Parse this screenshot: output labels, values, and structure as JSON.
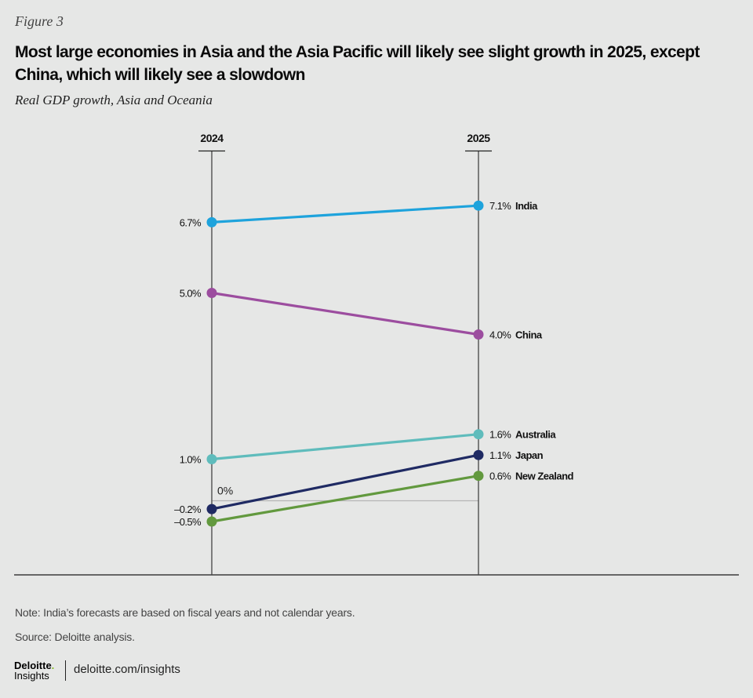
{
  "header": {
    "figure_label": "Figure 3",
    "title": "Most large economies in Asia and the Asia Pacific will likely see slight growth in 2025, except China, which will likely see a slowdown",
    "subtitle": "Real GDP growth, Asia and Oceania"
  },
  "chart_data": {
    "type": "line",
    "subtype": "slope",
    "title": "Most large economies in Asia and the Asia Pacific will likely see slight growth in 2025, except China, which will likely see a slowdown",
    "subtitle": "Real GDP growth, Asia and Oceania",
    "x": [
      "2024",
      "2025"
    ],
    "unit": "%",
    "zero_label": "0%",
    "ylim": [
      -1.8,
      8.4
    ],
    "grid": false,
    "series": [
      {
        "name": "India",
        "values": [
          6.7,
          7.1
        ],
        "labels": [
          "6.7%",
          "7.1%"
        ],
        "color": "#1ea3dc"
      },
      {
        "name": "China",
        "values": [
          5.0,
          4.0
        ],
        "labels": [
          "5.0%",
          "4.0%"
        ],
        "color": "#9c4d9f"
      },
      {
        "name": "Australia",
        "values": [
          1.0,
          1.6
        ],
        "labels": [
          "1.0%",
          "1.6%"
        ],
        "color": "#5fbcbc"
      },
      {
        "name": "Japan",
        "values": [
          -0.2,
          1.1
        ],
        "labels": [
          "–0.2%",
          "1.1%"
        ],
        "color": "#1f2a63"
      },
      {
        "name": "New Zealand",
        "values": [
          -0.5,
          0.6
        ],
        "labels": [
          "–0.5%",
          "0.6%"
        ],
        "color": "#62993e"
      }
    ]
  },
  "footer": {
    "note": "Note: India’s forecasts are based on fiscal years and not calendar years.",
    "source": "Source: Deloitte analysis.",
    "logo_brand": "Deloitte",
    "logo_dot": ".",
    "logo_sub": "Insights",
    "url": "deloitte.com/insights"
  }
}
